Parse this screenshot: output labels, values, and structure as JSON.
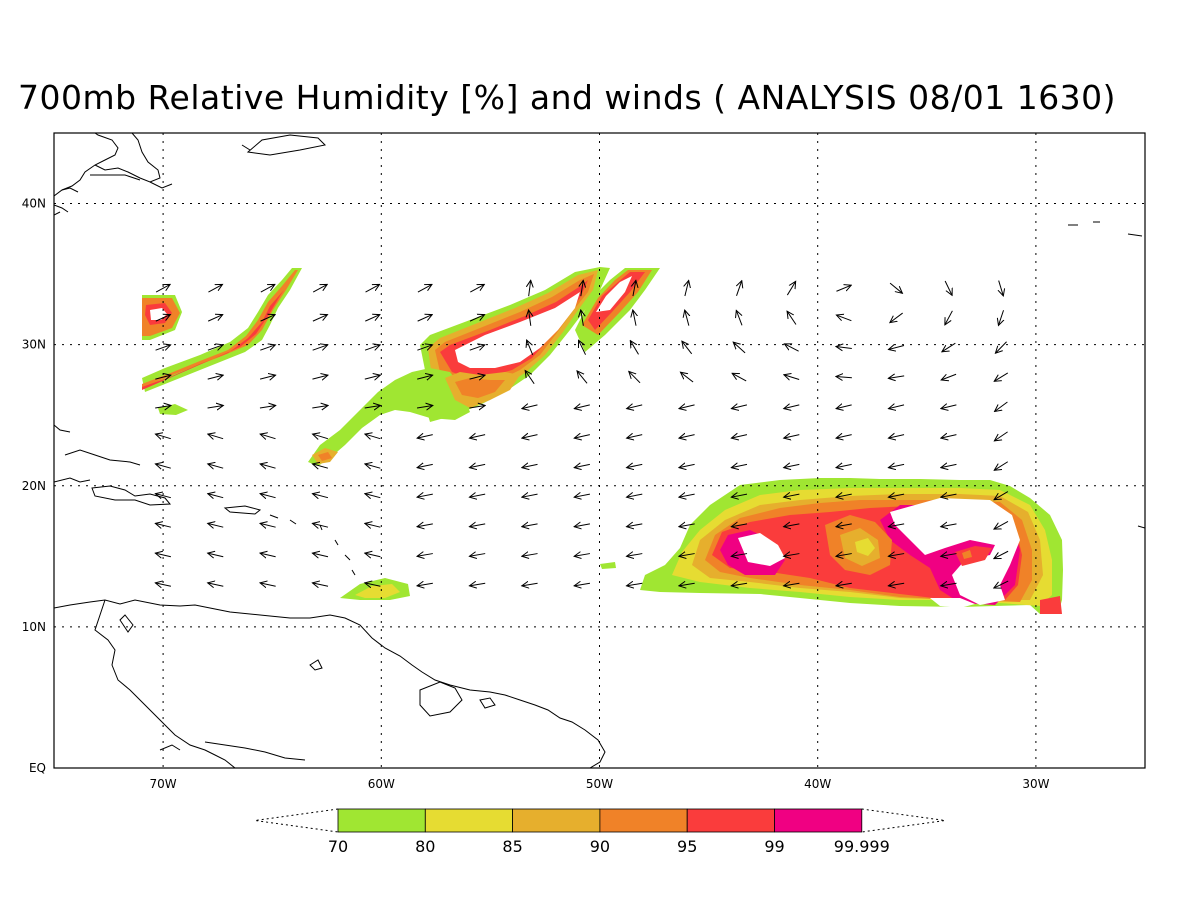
{
  "title": "700mb Relative Humidity [%] and winds ( ANALYSIS 08/01 1630)",
  "map": {
    "lon_min": -75,
    "lon_max": -25,
    "lat_min": 0,
    "lat_max": 45,
    "lon_ticks": [
      {
        "lon": -70,
        "label": "70W"
      },
      {
        "lon": -60,
        "label": "60W"
      },
      {
        "lon": -50,
        "label": "50W"
      },
      {
        "lon": -40,
        "label": "40W"
      },
      {
        "lon": -30,
        "label": "30W"
      }
    ],
    "lat_ticks": [
      {
        "lat": 40,
        "label": "40N"
      },
      {
        "lat": 30,
        "label": "30N"
      },
      {
        "lat": 20,
        "label": "20N"
      },
      {
        "lat": 10,
        "label": "10N"
      },
      {
        "lat": 0,
        "label": "EQ"
      }
    ],
    "grid": "dotted"
  },
  "colorbar": {
    "labels": [
      "70",
      "80",
      "85",
      "90",
      "95",
      "99",
      "99.999"
    ],
    "colors": [
      "#a0e632",
      "#e6dc32",
      "#e6af2d",
      "#f08228",
      "#fa3c3c",
      "#f00082"
    ]
  }
}
